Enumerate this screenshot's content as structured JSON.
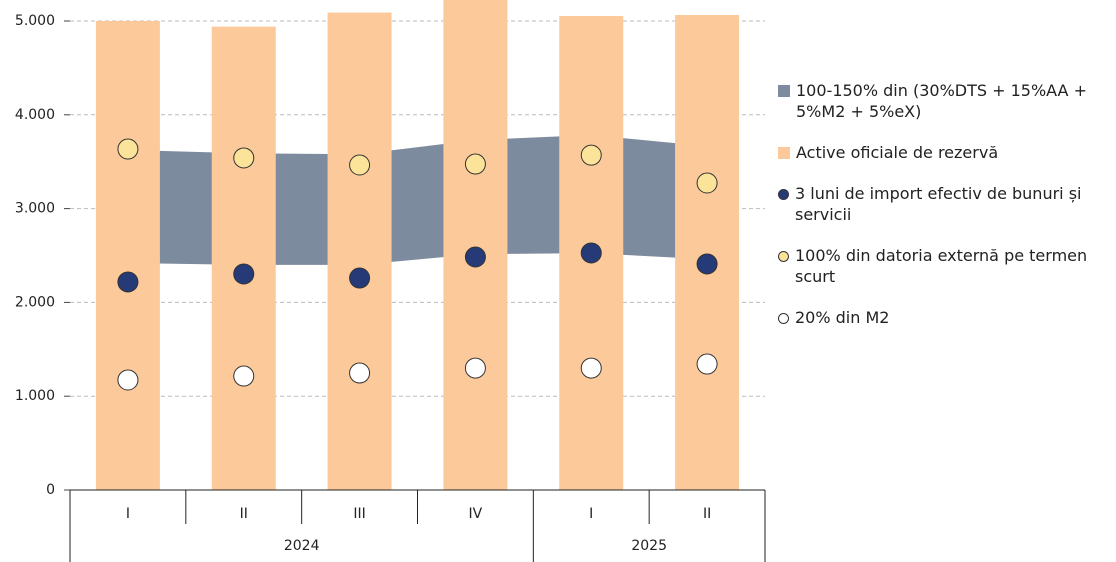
{
  "chart_data": {
    "type": "combo",
    "categories": [
      "I",
      "II",
      "III",
      "IV",
      "I",
      "II"
    ],
    "groups": [
      {
        "label": "2024",
        "span": 4
      },
      {
        "label": "2025",
        "span": 2
      }
    ],
    "ylim": [
      0,
      5224
    ],
    "yticks": [
      0,
      {
        "value": 1000,
        "label": "1.000"
      },
      {
        "value": 2000,
        "label": "2.000"
      },
      {
        "value": 3000,
        "label": "3.000"
      },
      {
        "value": 4000,
        "label": "4.000"
      },
      {
        "value": 5000,
        "label": "5.000"
      }
    ],
    "grid": true,
    "series": [
      {
        "name": "100-150% din (30%DTS + 15%AA + 5%M2 + 5%eX)",
        "type": "band",
        "color": "#7d8b9e",
        "low": [
          2420,
          2400,
          2400,
          2515,
          2525,
          2460
        ],
        "high": [
          3625,
          3590,
          3580,
          3730,
          3785,
          3665
        ]
      },
      {
        "name": "Active oficiale de rezervă",
        "type": "bar",
        "color": "#fcc99b",
        "values": [
          5000,
          4940,
          5090,
          5280,
          5053,
          5064
        ]
      },
      {
        "name": "3 luni de import efectiv de bunuri și servicii",
        "type": "dot",
        "color": "#253a77",
        "values": [
          2218,
          2303,
          2260,
          2484,
          2527,
          2410
        ]
      },
      {
        "name": "100% din datoria externă pe termen scurt",
        "type": "dot",
        "color": "#fbe49a",
        "values": [
          3635,
          3540,
          3465,
          3475,
          3570,
          3273
        ]
      },
      {
        "name": "20% din M2",
        "type": "dot",
        "color": "#ffffff",
        "values": [
          1173,
          1215,
          1247,
          1300,
          1300,
          1343
        ]
      }
    ]
  }
}
